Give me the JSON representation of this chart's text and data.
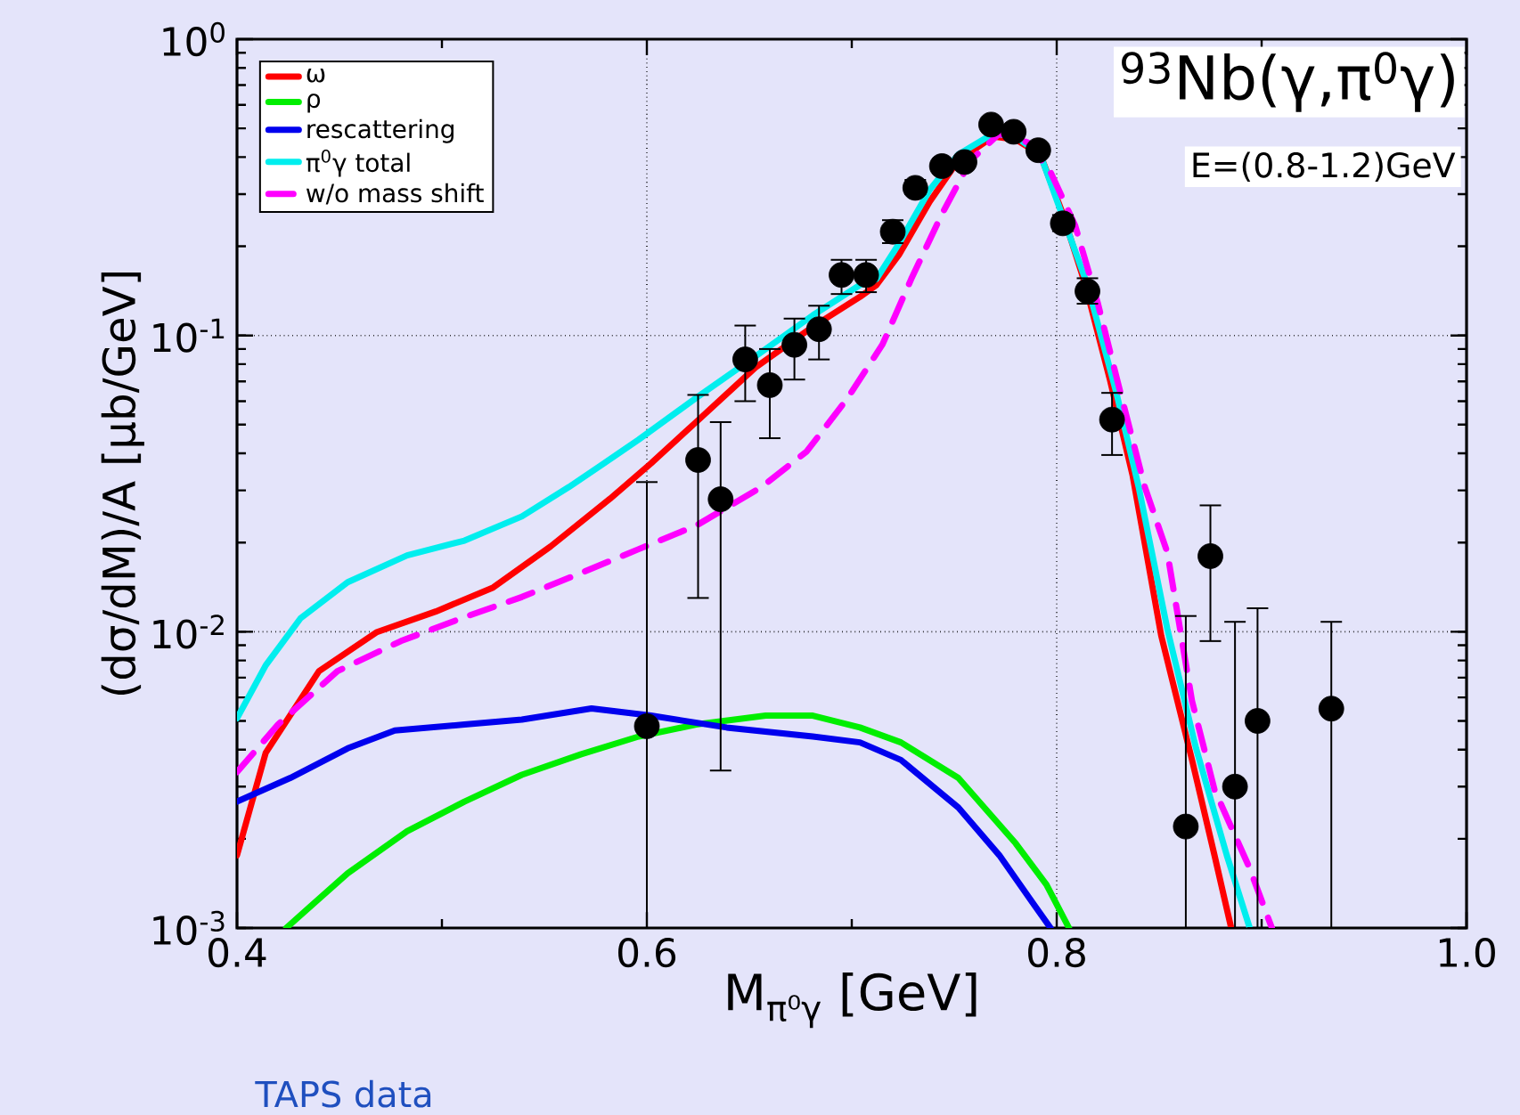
{
  "chart_data": {
    "type": "line",
    "title": "$^{93}$Nb(γ,π$^{0}$γ)",
    "xlabel": "M$_{π⁰γ}$ [GeV]",
    "ylabel": "(dσ/dM)/A [μb/GeV]",
    "annotations": [
      "E=(0.8-1.2)GeV",
      "TAPS data"
    ],
    "xlim": [
      0.4,
      1.0
    ],
    "xticks": [
      0.4,
      0.6,
      0.8,
      {
        "value": 1.0,
        "label": "1.0"
      }
    ],
    "ylim": [
      0.001,
      1
    ],
    "yticks": [
      {
        "value": 0.001,
        "label": "10$^{-3}$"
      },
      {
        "value": 0.01,
        "label": "10$^{-2}$"
      },
      {
        "value": 0.1,
        "label": "10$^{-1}$"
      },
      {
        "value": 1,
        "label": "10$^{0}$"
      }
    ],
    "log": true,
    "grid": true,
    "legend": "top left",
    "series": [
      {
        "name": "ω",
        "color": "#ff0000",
        "x": [
          0.4,
          0.414,
          0.44,
          0.468,
          0.497,
          0.525,
          0.553,
          0.582,
          0.602,
          0.624,
          0.653,
          0.681,
          0.704,
          0.712,
          0.723,
          0.738,
          0.752,
          0.769,
          0.78,
          0.792,
          0.803,
          0.814,
          0.826,
          0.837,
          0.851,
          0.866,
          0.877,
          0.885
        ],
        "values": [
          0.00176,
          0.0039,
          0.00736,
          0.00995,
          0.0117,
          0.0141,
          0.0194,
          0.0281,
          0.037,
          0.051,
          0.078,
          0.107,
          0.135,
          0.148,
          0.187,
          0.283,
          0.39,
          0.469,
          0.459,
          0.408,
          0.257,
          0.148,
          0.0708,
          0.0338,
          0.0097,
          0.0037,
          0.00176,
          0.00101
        ]
      },
      {
        "name": "ρ",
        "color": "#00ee00",
        "x": [
          0.424,
          0.454,
          0.483,
          0.511,
          0.539,
          0.568,
          0.596,
          0.624,
          0.658,
          0.681,
          0.704,
          0.724,
          0.752,
          0.78,
          0.795,
          0.806
        ],
        "values": [
          0.001,
          0.00153,
          0.00212,
          0.00267,
          0.00329,
          0.00386,
          0.00443,
          0.00486,
          0.00521,
          0.00521,
          0.00475,
          0.00423,
          0.00321,
          0.00193,
          0.0014,
          0.001
        ]
      },
      {
        "name": "rescattering",
        "color": "#0000ee",
        "x": [
          0.4,
          0.426,
          0.454,
          0.477,
          0.511,
          0.539,
          0.573,
          0.602,
          0.639,
          0.681,
          0.704,
          0.724,
          0.752,
          0.772,
          0.786,
          0.797
        ],
        "values": [
          0.00267,
          0.00321,
          0.00404,
          0.00464,
          0.00486,
          0.00505,
          0.00551,
          0.00521,
          0.00475,
          0.00443,
          0.00423,
          0.00369,
          0.00255,
          0.00176,
          0.00128,
          0.001
        ]
      },
      {
        "name": "π$^{0}$γ total",
        "color": "#00eeee",
        "x": [
          0.4,
          0.414,
          0.431,
          0.454,
          0.483,
          0.511,
          0.539,
          0.562,
          0.579,
          0.596,
          0.624,
          0.653,
          0.681,
          0.704,
          0.712,
          0.723,
          0.738,
          0.752,
          0.769,
          0.78,
          0.792,
          0.815,
          0.829,
          0.84,
          0.854,
          0.868,
          0.883,
          0.894
        ],
        "values": [
          0.0051,
          0.0077,
          0.0111,
          0.0147,
          0.0181,
          0.0203,
          0.0245,
          0.0308,
          0.037,
          0.0445,
          0.0615,
          0.085,
          0.117,
          0.148,
          0.155,
          0.204,
          0.31,
          0.408,
          0.48,
          0.469,
          0.408,
          0.148,
          0.0645,
          0.0308,
          0.0102,
          0.00404,
          0.00176,
          0.00101
        ]
      },
      {
        "name": "w/o mass shift",
        "color": "#ff00ff",
        "line_style": "dashed",
        "x": [
          0.4,
          0.42,
          0.449,
          0.48,
          0.511,
          0.539,
          0.568,
          0.596,
          0.624,
          0.656,
          0.678,
          0.698,
          0.715,
          0.729,
          0.744,
          0.758,
          0.772,
          0.786,
          0.797,
          0.809,
          0.82,
          0.831,
          0.843,
          0.854,
          0.866,
          0.877,
          0.894,
          0.905
        ],
        "values": [
          0.00336,
          0.00486,
          0.00736,
          0.0093,
          0.0112,
          0.0131,
          0.0158,
          0.019,
          0.0228,
          0.0308,
          0.0406,
          0.0615,
          0.0933,
          0.155,
          0.257,
          0.39,
          0.48,
          0.448,
          0.356,
          0.235,
          0.129,
          0.0645,
          0.0308,
          0.0185,
          0.00585,
          0.00293,
          0.0016,
          0.001
        ]
      },
      {
        "type": "scatter",
        "color": "#000000",
        "marker": "circle",
        "x": [
          0.6,
          0.625,
          0.636,
          0.648,
          0.66,
          0.672,
          0.684,
          0.695,
          0.707,
          0.72,
          0.731,
          0.744,
          0.755,
          0.768,
          0.779,
          0.791,
          0.803,
          0.815,
          0.827,
          0.863,
          0.875,
          0.887,
          0.898,
          0.934
        ],
        "values": [
          0.0048,
          0.038,
          0.028,
          0.083,
          0.068,
          0.093,
          0.105,
          0.16,
          0.16,
          0.224,
          0.315,
          0.373,
          0.385,
          0.515,
          0.487,
          0.422,
          0.239,
          0.141,
          0.052,
          0.0022,
          0.018,
          0.003,
          0.005,
          0.0055
        ],
        "errors": [
          [
            0.001,
            0.032
          ],
          [
            0.013,
            0.063
          ],
          [
            0.0034,
            0.051
          ],
          [
            0.06,
            0.108
          ],
          [
            0.045,
            0.09
          ],
          [
            0.071,
            0.114
          ],
          [
            0.083,
            0.126
          ],
          [
            0.138,
            0.18
          ],
          [
            0.14,
            0.18
          ],
          [
            0.205,
            0.245
          ],
          [
            0.3,
            0.335
          ],
          null,
          null,
          null,
          null,
          null,
          [
            0.225,
            0.255
          ],
          [
            0.128,
            0.156
          ],
          [
            0.0395,
            0.064
          ],
          [
            0.001,
            0.0113
          ],
          [
            0.0093,
            0.0267
          ],
          [
            0.001,
            0.0108
          ],
          [
            0.001,
            0.012
          ],
          [
            0.001,
            0.0108
          ]
        ]
      }
    ]
  }
}
